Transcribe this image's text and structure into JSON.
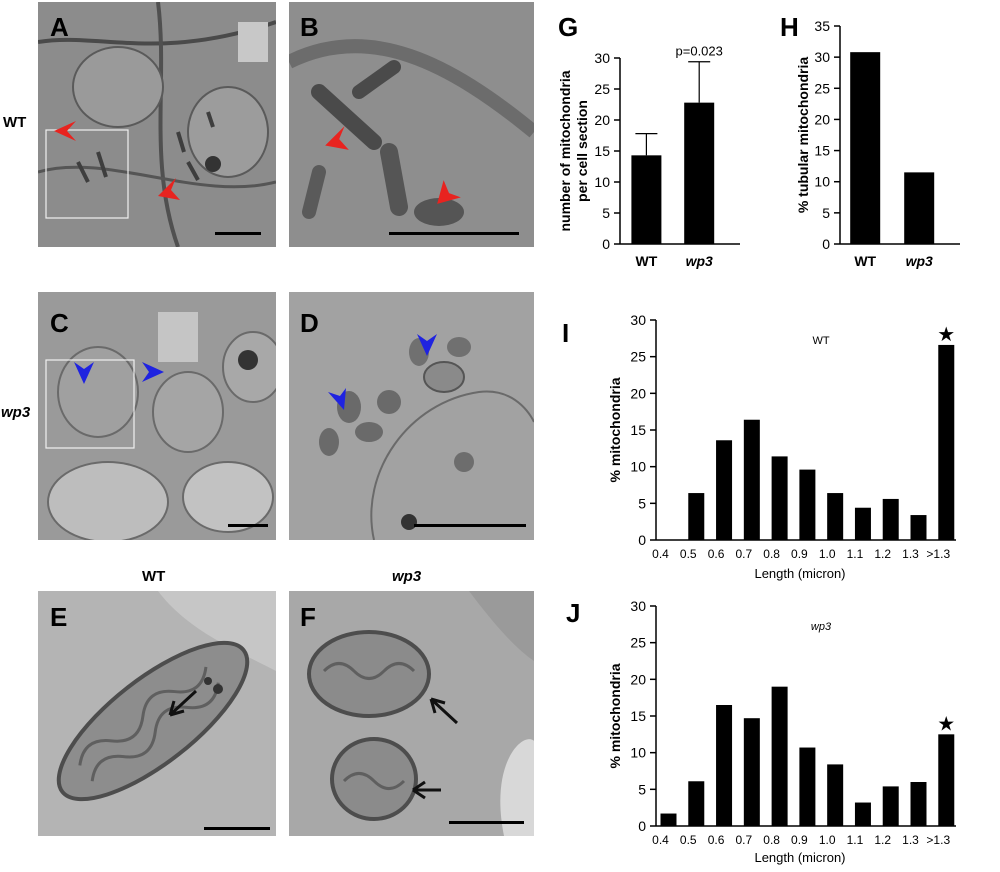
{
  "row_labels": {
    "wt": "WT",
    "wp3": "wp3"
  },
  "panel_labels": {
    "a": "A",
    "b": "B",
    "c": "C",
    "d": "D",
    "e": "E",
    "f": "F",
    "g": "G",
    "h": "H",
    "i": "I",
    "j": "J"
  },
  "column_labels": {
    "e": "WT",
    "f": "wp3"
  },
  "colors": {
    "red_arrow": "#e8231f",
    "blue_arrow": "#1f23e0",
    "black_arrow": "#111111",
    "bar": "#000000",
    "em_gray": "#8f8f8f"
  },
  "chart_data": [
    {
      "id": "G",
      "type": "bar",
      "categories": [
        "WT",
        "wp3"
      ],
      "values": [
        14.3,
        22.8
      ],
      "errors": [
        3.5,
        6.6
      ],
      "ylabel": "number of mitochondria\nper cell section",
      "ylim": [
        0,
        30
      ],
      "yticks": [
        0,
        5,
        10,
        15,
        20,
        25,
        30
      ],
      "annotation": "p=0.023"
    },
    {
      "id": "H",
      "type": "bar",
      "categories": [
        "WT",
        "wp3"
      ],
      "values": [
        30.8,
        11.5
      ],
      "ylabel": "% tubular mitochondria",
      "ylim": [
        0,
        35
      ],
      "yticks": [
        0,
        5,
        10,
        15,
        20,
        25,
        30,
        35
      ]
    },
    {
      "id": "I",
      "type": "bar",
      "title": "WT",
      "categories": [
        "0.4",
        "0.5",
        "0.6",
        "0.7",
        "0.8",
        "0.9",
        "1.0",
        "1.1",
        "1.2",
        "1.3",
        ">1.3"
      ],
      "values": [
        0,
        6.4,
        13.6,
        16.4,
        11.4,
        9.6,
        6.4,
        4.4,
        5.6,
        3.4,
        26.6
      ],
      "xlabel": "Length (micron)",
      "ylabel": "%  mitochondria",
      "ylim": [
        0,
        30
      ],
      "yticks": [
        0,
        5,
        10,
        15,
        20,
        25,
        30
      ],
      "star_marker": "★"
    },
    {
      "id": "J",
      "type": "bar",
      "title": "wp3",
      "categories": [
        "0.4",
        "0.5",
        "0.6",
        "0.7",
        "0.8",
        "0.9",
        "1.0",
        "1.1",
        "1.2",
        "1.3",
        ">1.3"
      ],
      "values": [
        1.7,
        6.1,
        16.5,
        14.7,
        19.0,
        10.7,
        8.4,
        3.2,
        5.4,
        6.0,
        12.5
      ],
      "xlabel": "Length (micron)",
      "ylabel": "%  mitochondria",
      "ylim": [
        0,
        30
      ],
      "yticks": [
        0,
        5,
        10,
        15,
        20,
        25,
        30
      ],
      "star_marker": "★"
    }
  ]
}
